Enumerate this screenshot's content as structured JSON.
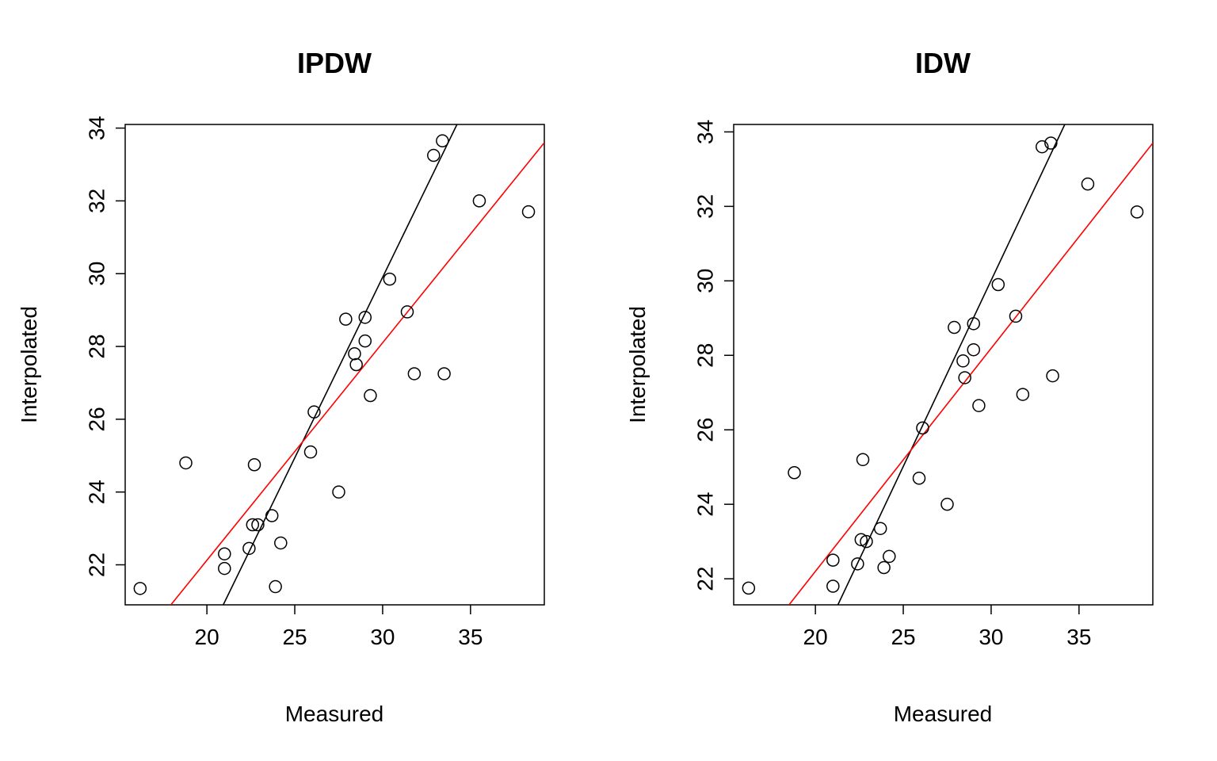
{
  "chart_data": [
    {
      "type": "scatter",
      "title": "IPDW",
      "xlabel": "Measured",
      "ylabel": "Interpolated",
      "xlim": [
        15.35,
        39.2
      ],
      "ylim": [
        20.9,
        34.1
      ],
      "x_ticks": [
        20,
        25,
        30,
        35
      ],
      "y_ticks": [
        22,
        24,
        26,
        28,
        30,
        32,
        34
      ],
      "x_tick_labels": [
        "20",
        "25",
        "30",
        "35"
      ],
      "y_tick_labels": [
        "22",
        "24",
        "26",
        "28",
        "30",
        "32",
        "34"
      ],
      "grid": false,
      "colors": {
        "points": "#000000",
        "fit_line": "#000000",
        "identity_line": "#ff0000"
      },
      "points": [
        {
          "x": 16.2,
          "y": 21.35
        },
        {
          "x": 18.8,
          "y": 24.8
        },
        {
          "x": 21.0,
          "y": 22.3
        },
        {
          "x": 21.0,
          "y": 21.9
        },
        {
          "x": 22.4,
          "y": 22.45
        },
        {
          "x": 22.6,
          "y": 23.1
        },
        {
          "x": 22.7,
          "y": 24.75
        },
        {
          "x": 22.9,
          "y": 23.1
        },
        {
          "x": 23.7,
          "y": 23.35
        },
        {
          "x": 23.9,
          "y": 21.4
        },
        {
          "x": 24.2,
          "y": 22.6
        },
        {
          "x": 25.9,
          "y": 25.1
        },
        {
          "x": 26.1,
          "y": 26.2
        },
        {
          "x": 27.5,
          "y": 24.0
        },
        {
          "x": 27.9,
          "y": 28.75
        },
        {
          "x": 28.4,
          "y": 27.8
        },
        {
          "x": 28.5,
          "y": 27.5
        },
        {
          "x": 29.0,
          "y": 28.15
        },
        {
          "x": 29.0,
          "y": 28.8
        },
        {
          "x": 29.3,
          "y": 26.65
        },
        {
          "x": 30.4,
          "y": 29.85
        },
        {
          "x": 31.4,
          "y": 28.95
        },
        {
          "x": 31.8,
          "y": 27.25
        },
        {
          "x": 32.9,
          "y": 33.25
        },
        {
          "x": 33.4,
          "y": 33.65
        },
        {
          "x": 33.5,
          "y": 27.25
        },
        {
          "x": 35.5,
          "y": 32.0
        },
        {
          "x": 38.3,
          "y": 31.7
        }
      ],
      "lines": [
        {
          "kind": "fit",
          "color": "#000000",
          "from": {
            "x": 20.93,
            "y": 20.9
          },
          "to": {
            "x": 34.23,
            "y": 34.1
          }
        },
        {
          "kind": "identity",
          "color": "#ff0000",
          "from": {
            "x": 17.95,
            "y": 20.9
          },
          "to": {
            "x": 39.2,
            "y": 33.6
          }
        }
      ]
    },
    {
      "type": "scatter",
      "title": "IDW",
      "xlabel": "Measured",
      "ylabel": "Interpolated",
      "xlim": [
        15.35,
        39.2
      ],
      "ylim": [
        21.3,
        34.2
      ],
      "x_ticks": [
        20,
        25,
        30,
        35
      ],
      "y_ticks": [
        22,
        24,
        26,
        28,
        30,
        32,
        34
      ],
      "x_tick_labels": [
        "20",
        "25",
        "30",
        "35"
      ],
      "y_tick_labels": [
        "22",
        "24",
        "26",
        "28",
        "30",
        "32",
        "34"
      ],
      "grid": false,
      "colors": {
        "points": "#000000",
        "fit_line": "#000000",
        "identity_line": "#ff0000"
      },
      "points": [
        {
          "x": 16.2,
          "y": 21.75
        },
        {
          "x": 18.8,
          "y": 24.85
        },
        {
          "x": 21.0,
          "y": 22.5
        },
        {
          "x": 21.0,
          "y": 21.8
        },
        {
          "x": 22.4,
          "y": 22.4
        },
        {
          "x": 22.6,
          "y": 23.05
        },
        {
          "x": 22.7,
          "y": 25.2
        },
        {
          "x": 22.9,
          "y": 23.0
        },
        {
          "x": 23.7,
          "y": 23.35
        },
        {
          "x": 23.9,
          "y": 22.3
        },
        {
          "x": 24.2,
          "y": 22.6
        },
        {
          "x": 25.9,
          "y": 24.7
        },
        {
          "x": 26.1,
          "y": 26.05
        },
        {
          "x": 27.5,
          "y": 24.0
        },
        {
          "x": 27.9,
          "y": 28.75
        },
        {
          "x": 28.4,
          "y": 27.85
        },
        {
          "x": 28.5,
          "y": 27.4
        },
        {
          "x": 29.0,
          "y": 28.15
        },
        {
          "x": 29.0,
          "y": 28.85
        },
        {
          "x": 29.3,
          "y": 26.65
        },
        {
          "x": 30.4,
          "y": 29.9
        },
        {
          "x": 31.4,
          "y": 29.05
        },
        {
          "x": 31.8,
          "y": 26.95
        },
        {
          "x": 32.9,
          "y": 33.6
        },
        {
          "x": 33.4,
          "y": 33.7
        },
        {
          "x": 33.5,
          "y": 27.45
        },
        {
          "x": 35.5,
          "y": 32.6
        },
        {
          "x": 38.3,
          "y": 31.85
        }
      ],
      "lines": [
        {
          "kind": "fit",
          "color": "#000000",
          "from": {
            "x": 21.28,
            "y": 21.3
          },
          "to": {
            "x": 34.19,
            "y": 34.2
          }
        },
        {
          "kind": "identity",
          "color": "#ff0000",
          "from": {
            "x": 18.5,
            "y": 21.3
          },
          "to": {
            "x": 39.2,
            "y": 33.7
          }
        }
      ]
    }
  ]
}
